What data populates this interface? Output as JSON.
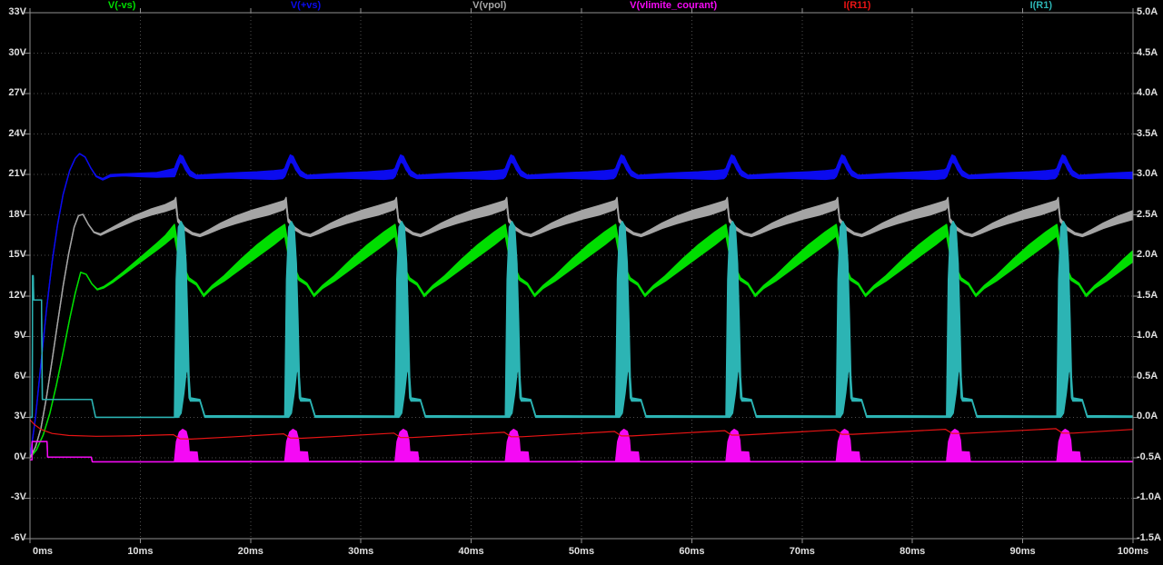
{
  "window_title": "LTspice waveform viewer",
  "legend": [
    {
      "label": "V(-vs)",
      "color": "#00de00"
    },
    {
      "label": "V(+vs)",
      "color": "#0b0bef"
    },
    {
      "label": "V(vpol)",
      "color": "#a5a5a5"
    },
    {
      "label": "V(vlimite_courant)",
      "color": "#f50af5"
    },
    {
      "label": "I(R11)",
      "color": "#e81414"
    },
    {
      "label": "I(R1)",
      "color": "#2cb4b4"
    }
  ],
  "chart_data": {
    "type": "line",
    "title": "",
    "grid": true,
    "legend_position": "top",
    "x_axis": {
      "unit": "ms",
      "range": [
        0,
        100
      ],
      "tick_step": 10,
      "tick_labels": [
        "0ms",
        "10ms",
        "20ms",
        "30ms",
        "40ms",
        "50ms",
        "60ms",
        "70ms",
        "80ms",
        "90ms",
        "100ms"
      ]
    },
    "y_axis_left": {
      "unit": "V",
      "range": [
        -6,
        33
      ],
      "tick_step": 3,
      "tick_labels": [
        "33V",
        "30V",
        "27V",
        "24V",
        "21V",
        "18V",
        "15V",
        "12V",
        "9V",
        "6V",
        "3V",
        "0V",
        "-3V",
        "-6V"
      ]
    },
    "y_axis_right": {
      "unit": "A",
      "range": [
        -1.5,
        5.0
      ],
      "tick_step": 0.5,
      "tick_labels": [
        "5.0A",
        "4.5A",
        "4.0A",
        "3.5A",
        "3.0A",
        "2.5A",
        "2.0A",
        "1.5A",
        "1.0A",
        "0.5A",
        "0.0A",
        "-0.5A",
        "-1.0A",
        "-1.5A"
      ]
    },
    "period_ms": 10,
    "burst_times_ms": [
      13.1,
      23.1,
      33.1,
      43.1,
      53.1,
      63.1,
      73.1,
      83.1,
      93.1
    ],
    "colors": {
      "background": "#000000",
      "grid": "#4e4e4e",
      "border": "#909090",
      "tick_text": "#e0e0e0"
    },
    "series": [
      {
        "name": "V(-vs)",
        "color": "#00de00",
        "axis": "left",
        "kind": "band",
        "startup": [
          [
            0,
            0,
            0
          ],
          [
            0.6,
            0.6,
            0.6
          ],
          [
            1.2,
            1.7,
            1.7
          ],
          [
            1.8,
            3.3,
            3.3
          ],
          [
            2.4,
            5.4,
            5.4
          ],
          [
            3,
            7.8,
            7.8
          ],
          [
            3.6,
            10.3,
            10.3
          ],
          [
            4.1,
            12.2,
            12.2
          ],
          [
            4.6,
            13.75,
            13.75
          ],
          [
            5.1,
            13.6,
            13.6
          ],
          [
            5.6,
            12.9,
            12.9
          ],
          [
            6.1,
            12.45,
            12.5
          ],
          [
            6.7,
            12.6,
            12.7
          ],
          [
            7.5,
            13.0,
            13.15
          ],
          [
            8.5,
            13.6,
            13.8
          ],
          [
            9.5,
            14.2,
            14.5
          ],
          [
            10.5,
            14.8,
            15.2
          ],
          [
            11.5,
            15.4,
            15.9
          ],
          [
            12.3,
            15.9,
            16.5
          ],
          [
            13.1,
            16.45,
            17.3
          ]
        ],
        "cycle": [
          [
            0.0,
            16.45,
            17.3
          ],
          [
            0.5,
            14.2,
            14.8
          ],
          [
            1.3,
            13.15,
            13.35
          ],
          [
            2.0,
            12.8,
            12.95
          ],
          [
            2.65,
            11.95,
            12.1
          ],
          [
            3.4,
            12.55,
            12.75
          ],
          [
            4.5,
            13.1,
            13.5
          ],
          [
            6.0,
            14.0,
            14.7
          ],
          [
            7.5,
            14.9,
            15.8
          ],
          [
            9.0,
            15.8,
            16.75
          ],
          [
            10.0,
            16.45,
            17.3
          ]
        ]
      },
      {
        "name": "V(+vs)",
        "color": "#0b0bef",
        "axis": "left",
        "kind": "band",
        "startup": [
          [
            0,
            0,
            0
          ],
          [
            0.5,
            3,
            3
          ],
          [
            1,
            7,
            7
          ],
          [
            1.5,
            11,
            11
          ],
          [
            2,
            14.5,
            14.5
          ],
          [
            2.5,
            17.3,
            17.3
          ],
          [
            3,
            19.5,
            19.5
          ],
          [
            3.6,
            21.3,
            21.3
          ],
          [
            4.1,
            22.2,
            22.2
          ],
          [
            4.5,
            22.55,
            22.55
          ],
          [
            5,
            22.3,
            22.3
          ],
          [
            5.5,
            21.5,
            21.5
          ],
          [
            6,
            20.85,
            20.9
          ],
          [
            6.6,
            20.6,
            20.7
          ],
          [
            7.3,
            20.85,
            21.0
          ],
          [
            8.5,
            20.9,
            21.05
          ],
          [
            10,
            20.85,
            21.1
          ],
          [
            11.5,
            20.8,
            21.15
          ],
          [
            13.1,
            20.85,
            21.45
          ]
        ],
        "cycle": [
          [
            0.0,
            20.85,
            21.45
          ],
          [
            0.25,
            21.4,
            22.0
          ],
          [
            0.5,
            21.95,
            22.45
          ],
          [
            0.75,
            21.8,
            22.35
          ],
          [
            1.0,
            21.35,
            21.9
          ],
          [
            1.4,
            20.9,
            21.3
          ],
          [
            2.0,
            20.7,
            20.95
          ],
          [
            3.0,
            20.72,
            21.0
          ],
          [
            4.5,
            20.75,
            21.08
          ],
          [
            6.0,
            20.72,
            21.15
          ],
          [
            7.5,
            20.68,
            21.2
          ],
          [
            9.0,
            20.65,
            21.28
          ],
          [
            9.8,
            20.7,
            21.35
          ],
          [
            10.0,
            20.85,
            21.45
          ]
        ]
      },
      {
        "name": "V(vpol)",
        "color": "#a5a5a5",
        "axis": "left",
        "kind": "band",
        "startup": [
          [
            0,
            0,
            0
          ],
          [
            0.5,
            0.8,
            0.8
          ],
          [
            1,
            2.2,
            2.2
          ],
          [
            1.5,
            4.5,
            4.5
          ],
          [
            2,
            7.2,
            7.2
          ],
          [
            2.5,
            10,
            10
          ],
          [
            3,
            12.7,
            12.7
          ],
          [
            3.5,
            15.1,
            15.1
          ],
          [
            4,
            17.1,
            17.1
          ],
          [
            4.4,
            17.95,
            17.95
          ],
          [
            4.8,
            18.05,
            18.05
          ],
          [
            5.3,
            17.3,
            17.3
          ],
          [
            5.8,
            16.7,
            16.75
          ],
          [
            6.4,
            16.5,
            16.6
          ],
          [
            7.2,
            16.8,
            16.95
          ],
          [
            8.2,
            17.15,
            17.4
          ],
          [
            9.5,
            17.6,
            17.95
          ],
          [
            11,
            18.0,
            18.45
          ],
          [
            12.2,
            18.25,
            18.75
          ],
          [
            13.1,
            18.5,
            19.1
          ]
        ],
        "cycle": [
          [
            0.0,
            18.5,
            19.1
          ],
          [
            0.12,
            18.7,
            19.3
          ],
          [
            0.3,
            17.5,
            17.75
          ],
          [
            0.9,
            16.9,
            17.1
          ],
          [
            1.6,
            16.55,
            16.7
          ],
          [
            2.3,
            16.4,
            16.55
          ],
          [
            3.0,
            16.6,
            16.85
          ],
          [
            4.2,
            17.0,
            17.4
          ],
          [
            5.5,
            17.35,
            17.9
          ],
          [
            7.0,
            17.7,
            18.35
          ],
          [
            8.5,
            18.0,
            18.7
          ],
          [
            9.9,
            18.4,
            19.05
          ],
          [
            10.0,
            18.5,
            19.1
          ]
        ]
      },
      {
        "name": "V(vlimite_courant)",
        "color": "#f50af5",
        "axis": "left",
        "kind": "band",
        "startup": [
          [
            0,
            -0.15,
            -0.15
          ],
          [
            0.18,
            -0.15,
            -0.15
          ],
          [
            0.2,
            1.2,
            1.2
          ],
          [
            1.55,
            1.2,
            1.2
          ],
          [
            1.6,
            0.05,
            0.05
          ],
          [
            5.55,
            0.05,
            0.05
          ],
          [
            5.65,
            -0.3,
            -0.3
          ],
          [
            13.1,
            -0.3,
            -0.3
          ]
        ],
        "cycle": [
          [
            0.0,
            -0.3,
            -0.27
          ],
          [
            0.18,
            -0.3,
            1.2
          ],
          [
            0.45,
            -0.3,
            1.9
          ],
          [
            0.75,
            -0.3,
            2.1
          ],
          [
            1.05,
            -0.3,
            1.95
          ],
          [
            1.25,
            -0.3,
            1.3
          ],
          [
            1.33,
            -0.3,
            0.45
          ],
          [
            2.05,
            -0.3,
            0.42
          ],
          [
            2.15,
            -0.3,
            -0.27
          ],
          [
            10.0,
            -0.3,
            -0.28
          ]
        ]
      },
      {
        "name": "I(R11)",
        "color": "#e81414",
        "axis": "right",
        "kind": "line",
        "points": [
          [
            0,
            -0.03
          ],
          [
            0.4,
            -0.09
          ],
          [
            1.0,
            -0.15
          ],
          [
            2.0,
            -0.2
          ],
          [
            3.5,
            -0.225
          ],
          [
            6,
            -0.235
          ],
          [
            9,
            -0.23
          ],
          [
            13.0,
            -0.215
          ],
          [
            13.6,
            -0.265
          ],
          [
            14.6,
            -0.27
          ],
          [
            18,
            -0.245
          ],
          [
            23.0,
            -0.205
          ],
          [
            23.6,
            -0.255
          ],
          [
            24.6,
            -0.26
          ],
          [
            28,
            -0.235
          ],
          [
            33.0,
            -0.195
          ],
          [
            33.6,
            -0.25
          ],
          [
            34.6,
            -0.25
          ],
          [
            43.0,
            -0.185
          ],
          [
            43.6,
            -0.24
          ],
          [
            44.6,
            -0.24
          ],
          [
            53.0,
            -0.175
          ],
          [
            53.6,
            -0.23
          ],
          [
            54.6,
            -0.23
          ],
          [
            63.0,
            -0.165
          ],
          [
            63.6,
            -0.22
          ],
          [
            64.6,
            -0.22
          ],
          [
            73.0,
            -0.155
          ],
          [
            73.6,
            -0.21
          ],
          [
            74.6,
            -0.21
          ],
          [
            83.0,
            -0.148
          ],
          [
            83.6,
            -0.2
          ],
          [
            84.6,
            -0.2
          ],
          [
            93.0,
            -0.14
          ],
          [
            93.6,
            -0.195
          ],
          [
            94.6,
            -0.195
          ],
          [
            100,
            -0.15
          ]
        ]
      },
      {
        "name": "I(R1)",
        "color": "#2cb4b4",
        "axis": "right",
        "kind": "band",
        "startup": [
          [
            0,
            0,
            0
          ],
          [
            0.2,
            0,
            0
          ],
          [
            0.24,
            1.75,
            1.75
          ],
          [
            0.3,
            1.72,
            1.75
          ],
          [
            0.34,
            1.45,
            1.45
          ],
          [
            1.05,
            1.45,
            1.45
          ],
          [
            1.12,
            0.22,
            0.22
          ],
          [
            5.6,
            0.22,
            0.22
          ],
          [
            5.95,
            0,
            0
          ],
          [
            13.1,
            0,
            0
          ]
        ],
        "cycle": [
          [
            0.0,
            0.0,
            0.04
          ],
          [
            0.15,
            0.0,
            1.7
          ],
          [
            0.35,
            0.0,
            2.35
          ],
          [
            0.6,
            0.05,
            2.42
          ],
          [
            0.85,
            0.3,
            2.35
          ],
          [
            1.05,
            0.55,
            1.9
          ],
          [
            1.2,
            0.6,
            1.2
          ],
          [
            1.32,
            0.24,
            0.5
          ],
          [
            1.45,
            0.2,
            0.24
          ],
          [
            2.3,
            0.2,
            0.22
          ],
          [
            2.75,
            0.0,
            0.02
          ],
          [
            10.0,
            0.0,
            0.015
          ]
        ]
      }
    ]
  }
}
